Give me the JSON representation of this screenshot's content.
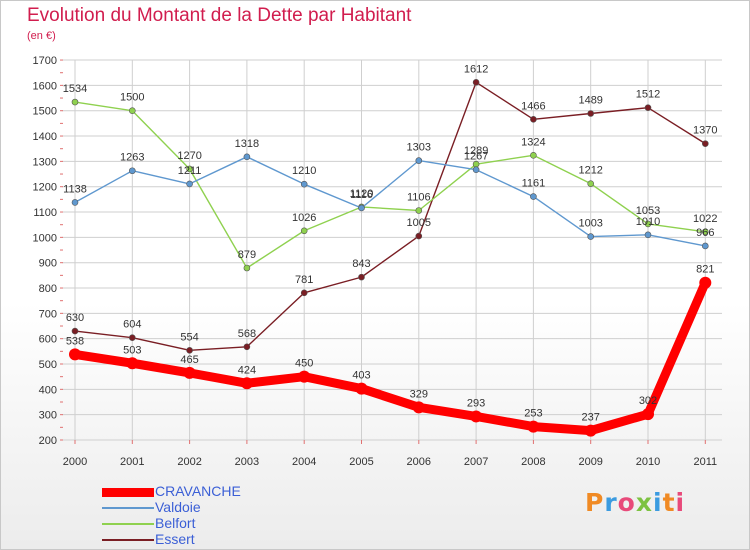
{
  "title": "Evolution du Montant de la Dette par Habitant",
  "subtitle": "(en €)",
  "logo_text": "Proxiti",
  "colors": {
    "title": "#d11d4e",
    "axis_text": "#333333",
    "grid": "#cfcfcf",
    "legend_text": "#3b5fd6",
    "logo_letters": [
      "#f08a24",
      "#3b9be0",
      "#e84a7a",
      "#7dc242",
      "#3b9be0",
      "#f08a24",
      "#e84a7a"
    ]
  },
  "chart_data": {
    "type": "line",
    "title": "Evolution du Montant de la Dette par Habitant",
    "subtitle": "(en €)",
    "xlabel": "",
    "ylabel": "",
    "categories": [
      "2000",
      "2001",
      "2002",
      "2003",
      "2004",
      "2005",
      "2006",
      "2007",
      "2008",
      "2009",
      "2010",
      "2011"
    ],
    "ylim": [
      200,
      1700
    ],
    "yticks": [
      200,
      300,
      400,
      500,
      600,
      700,
      800,
      900,
      1000,
      1100,
      1200,
      1300,
      1400,
      1500,
      1600,
      1700
    ],
    "grid": true,
    "legend_position": "bottom-left",
    "series": [
      {
        "name": "CRAVANCHE",
        "color": "#ff0000",
        "values": [
          538,
          503,
          465,
          424,
          450,
          403,
          329,
          293,
          253,
          237,
          302,
          821
        ],
        "labels": [
          "538",
          "503",
          "465",
          "424",
          "450",
          "403",
          "329",
          "293",
          "253",
          "237",
          "302",
          "821"
        ]
      },
      {
        "name": "Valdoie",
        "color": "#5f98cf",
        "values": [
          1138,
          1263,
          1211,
          1318,
          1210,
          1116,
          1303,
          1267,
          1161,
          1003,
          1010,
          966
        ],
        "labels": [
          "1138",
          "1263",
          "1211",
          "1318",
          "1210",
          "1116",
          "1303",
          "1267",
          "1161",
          "1003",
          "1010",
          "966"
        ]
      },
      {
        "name": "Belfort",
        "color": "#8fd14f",
        "values": [
          1534,
          1500,
          1270,
          879,
          1026,
          1120,
          1106,
          1289,
          1324,
          1212,
          1053,
          1022
        ],
        "labels": [
          "1534",
          "1500",
          "1270",
          "879",
          "1026",
          "1120",
          "1106",
          "1289",
          "1324",
          "1212",
          "1053",
          "1022"
        ]
      },
      {
        "name": "Essert",
        "color": "#7a1e24",
        "values": [
          630,
          604,
          554,
          568,
          781,
          843,
          1005,
          1612,
          1466,
          1489,
          1512,
          1370
        ],
        "labels": [
          "630",
          "604",
          "554",
          "568",
          "781",
          "843",
          "1005",
          "1612",
          "1466",
          "1489",
          "1512",
          "1370"
        ]
      }
    ]
  }
}
